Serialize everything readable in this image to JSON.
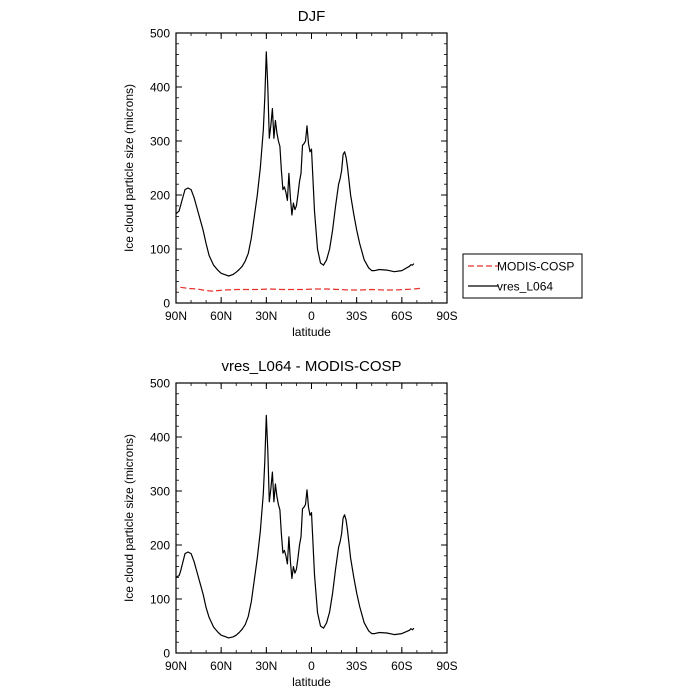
{
  "chart_data": [
    {
      "type": "line",
      "title": "DJF",
      "xlabel": "latitude",
      "ylabel": "Ice cloud particle size (microns)",
      "xlim": [
        90,
        -90
      ],
      "ylim": [
        0,
        500
      ],
      "xticks": [
        {
          "value": 90,
          "label": "90N"
        },
        {
          "value": 60,
          "label": "60N"
        },
        {
          "value": 30,
          "label": "30N"
        },
        {
          "value": 0,
          "label": "0"
        },
        {
          "value": -30,
          "label": "30S"
        },
        {
          "value": -60,
          "label": "60S"
        },
        {
          "value": -90,
          "label": "90S"
        }
      ],
      "yticks": [
        {
          "value": 0,
          "label": "0"
        },
        {
          "value": 100,
          "label": "100"
        },
        {
          "value": 200,
          "label": "200"
        },
        {
          "value": 300,
          "label": "300"
        },
        {
          "value": 400,
          "label": "400"
        },
        {
          "value": 500,
          "label": "500"
        }
      ],
      "legend": {
        "placement": "right"
      },
      "series": [
        {
          "name": "MODIS-COSP",
          "color": "#e8302c",
          "dash": "dashed",
          "x": [
            -72,
            -68,
            -62,
            -55,
            -48,
            -40,
            -32,
            -25,
            -18,
            -10,
            -2,
            5,
            12,
            20,
            28,
            35,
            42,
            50,
            58,
            62,
            64,
            66,
            70,
            76,
            82,
            87,
            89
          ],
          "y": [
            27,
            26,
            25,
            24,
            24,
            25,
            24,
            24,
            25,
            26,
            26,
            25,
            25,
            25,
            26,
            25,
            25,
            25,
            24,
            23,
            23,
            22,
            23,
            26,
            27,
            29,
            26
          ]
        },
        {
          "name": "vres_L064",
          "color": "#000000",
          "dash": "solid",
          "x": [
            -68,
            -67,
            -66,
            -65,
            -60,
            -55,
            -50,
            -45,
            -42,
            -40,
            -38,
            -35,
            -32,
            -30,
            -28,
            -26,
            -24,
            -23,
            -22,
            -21,
            -20,
            -19,
            -18,
            -16,
            -14,
            -12,
            -10,
            -8,
            -6,
            -4,
            -2,
            0,
            1,
            2,
            3,
            4,
            5,
            6,
            7,
            8,
            9,
            10,
            11,
            12,
            13,
            14,
            15,
            16,
            17,
            18,
            19,
            20,
            21,
            22,
            23,
            24,
            25,
            26,
            27,
            28,
            29,
            30,
            31,
            32,
            34,
            36,
            38,
            40,
            42,
            44,
            46,
            48,
            50,
            52,
            55,
            57,
            60,
            62,
            65,
            68,
            70,
            72,
            74,
            76,
            78,
            80,
            82,
            84,
            85,
            86,
            87,
            88,
            89,
            90
          ],
          "y": [
            73,
            70,
            71,
            68,
            60,
            58,
            61,
            62,
            60,
            60,
            65,
            80,
            110,
            135,
            165,
            200,
            250,
            270,
            280,
            275,
            245,
            230,
            220,
            180,
            135,
            100,
            80,
            70,
            74,
            100,
            170,
            285,
            280,
            295,
            328,
            300,
            295,
            292,
            240,
            225,
            200,
            180,
            173,
            185,
            163,
            195,
            240,
            190,
            205,
            215,
            210,
            245,
            290,
            300,
            315,
            338,
            305,
            360,
            330,
            305,
            400,
            465,
            380,
            320,
            250,
            200,
            160,
            120,
            92,
            78,
            68,
            62,
            57,
            53,
            50,
            52,
            55,
            60,
            70,
            88,
            110,
            135,
            155,
            175,
            195,
            210,
            213,
            210,
            200,
            190,
            180,
            170,
            168,
            165
          ]
        }
      ]
    },
    {
      "type": "line",
      "title": "vres_L064 - MODIS-COSP",
      "xlabel": "latitude",
      "ylabel": "Ice cloud particle size (microns)",
      "xlim": [
        90,
        -90
      ],
      "ylim": [
        0,
        500
      ],
      "xticks": [
        {
          "value": 90,
          "label": "90N"
        },
        {
          "value": 60,
          "label": "60N"
        },
        {
          "value": 30,
          "label": "30N"
        },
        {
          "value": 0,
          "label": "0"
        },
        {
          "value": -30,
          "label": "30S"
        },
        {
          "value": -60,
          "label": "60S"
        },
        {
          "value": -90,
          "label": "90S"
        }
      ],
      "yticks": [
        {
          "value": 0,
          "label": "0"
        },
        {
          "value": 100,
          "label": "100"
        },
        {
          "value": 200,
          "label": "200"
        },
        {
          "value": 300,
          "label": "300"
        },
        {
          "value": 400,
          "label": "400"
        },
        {
          "value": 500,
          "label": "500"
        }
      ],
      "series": [
        {
          "name": "vres_L064 - MODIS-COSP",
          "color": "#000000",
          "dash": "solid",
          "x": [
            -68,
            -67,
            -66,
            -65,
            -60,
            -55,
            -50,
            -45,
            -42,
            -40,
            -38,
            -35,
            -32,
            -30,
            -28,
            -26,
            -24,
            -23,
            -22,
            -21,
            -20,
            -19,
            -18,
            -16,
            -14,
            -12,
            -10,
            -8,
            -6,
            -4,
            -2,
            0,
            1,
            2,
            3,
            4,
            5,
            6,
            7,
            8,
            9,
            10,
            11,
            12,
            13,
            14,
            15,
            16,
            17,
            18,
            19,
            20,
            21,
            22,
            23,
            24,
            25,
            26,
            27,
            28,
            29,
            30,
            31,
            32,
            34,
            36,
            38,
            40,
            42,
            44,
            46,
            48,
            50,
            52,
            55,
            57,
            60,
            62,
            65,
            68,
            70,
            72,
            74,
            76,
            78,
            80,
            82,
            84,
            85,
            86,
            87,
            88,
            89,
            90
          ],
          "y": [
            46,
            43,
            45,
            42,
            36,
            34,
            37,
            38,
            36,
            36,
            41,
            56,
            86,
            111,
            141,
            176,
            226,
            246,
            256,
            250,
            221,
            206,
            196,
            156,
            111,
            76,
            56,
            46,
            50,
            75,
            145,
            260,
            255,
            270,
            302,
            275,
            270,
            267,
            215,
            200,
            175,
            155,
            148,
            160,
            138,
            170,
            215,
            165,
            180,
            190,
            185,
            220,
            265,
            275,
            290,
            313,
            280,
            335,
            305,
            280,
            375,
            440,
            355,
            295,
            225,
            176,
            135,
            95,
            68,
            53,
            44,
            38,
            33,
            30,
            28,
            30,
            33,
            38,
            48,
            66,
            84,
            109,
            129,
            149,
            169,
            184,
            187,
            184,
            173,
            162,
            151,
            143,
            142,
            139
          ]
        }
      ]
    }
  ]
}
